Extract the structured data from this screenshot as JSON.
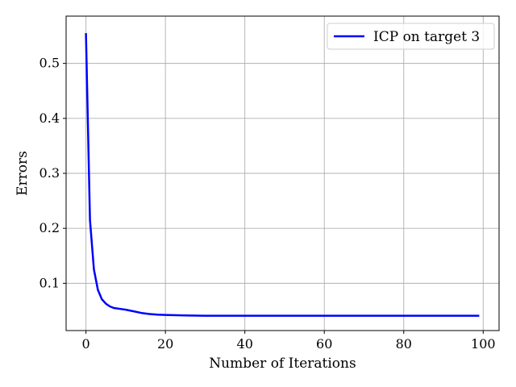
{
  "chart_data": {
    "type": "line",
    "title": "",
    "xlabel": "Number of Iterations",
    "ylabel": "Errors",
    "xlim": [
      -5,
      104
    ],
    "ylim": [
      0.014,
      0.586
    ],
    "xticks": [
      0,
      20,
      40,
      60,
      80,
      100
    ],
    "yticks": [
      0.1,
      0.2,
      0.3,
      0.4,
      0.5
    ],
    "xtick_labels": [
      "0",
      "20",
      "40",
      "60",
      "80",
      "100"
    ],
    "ytick_labels": [
      "0.1",
      "0.2",
      "0.3",
      "0.4",
      "0.5"
    ],
    "grid": true,
    "legend_position": "top-right",
    "series": [
      {
        "name": "ICP on target 3",
        "color": "#0000ff",
        "x": [
          0,
          1,
          2,
          3,
          4,
          5,
          6,
          7,
          8,
          10,
          12,
          14,
          16,
          18,
          20,
          25,
          30,
          40,
          50,
          60,
          70,
          80,
          90,
          99
        ],
        "y": [
          0.555,
          0.215,
          0.125,
          0.088,
          0.071,
          0.063,
          0.058,
          0.055,
          0.054,
          0.052,
          0.049,
          0.046,
          0.044,
          0.043,
          0.0425,
          0.0415,
          0.041,
          0.041,
          0.041,
          0.041,
          0.041,
          0.041,
          0.041,
          0.041
        ]
      }
    ]
  }
}
